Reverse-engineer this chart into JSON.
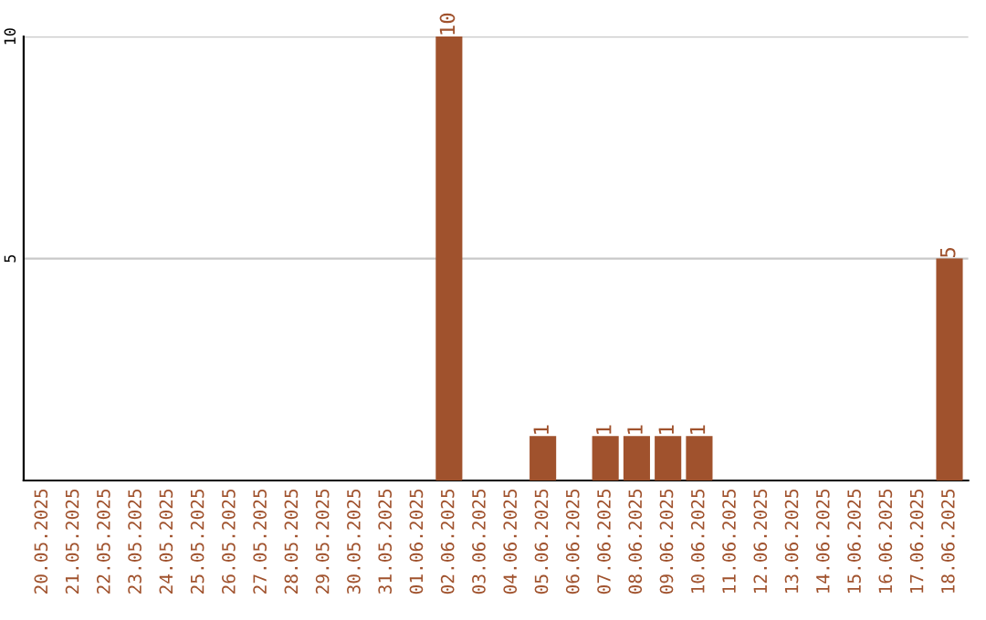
{
  "chart_data": {
    "type": "bar",
    "categories": [
      "20.05.2025",
      "21.05.2025",
      "22.05.2025",
      "23.05.2025",
      "24.05.2025",
      "25.05.2025",
      "26.05.2025",
      "27.05.2025",
      "28.05.2025",
      "29.05.2025",
      "30.05.2025",
      "31.05.2025",
      "01.06.2025",
      "02.06.2025",
      "03.06.2025",
      "04.06.2025",
      "05.06.2025",
      "06.06.2025",
      "07.06.2025",
      "08.06.2025",
      "09.06.2025",
      "10.06.2025",
      "11.06.2025",
      "12.06.2025",
      "13.06.2025",
      "14.06.2025",
      "15.06.2025",
      "16.06.2025",
      "17.06.2025",
      "18.06.2025"
    ],
    "values": [
      0,
      0,
      0,
      0,
      0,
      0,
      0,
      0,
      0,
      0,
      0,
      0,
      0,
      10,
      0,
      0,
      1,
      0,
      1,
      1,
      1,
      1,
      0,
      0,
      0,
      0,
      0,
      0,
      0,
      5
    ],
    "value_labels": [
      null,
      null,
      null,
      null,
      null,
      null,
      null,
      null,
      null,
      null,
      null,
      null,
      null,
      "10",
      null,
      null,
      "1",
      null,
      "1",
      "1",
      "1",
      "1",
      null,
      null,
      null,
      null,
      null,
      null,
      null,
      "5"
    ],
    "color": "#a0522d",
    "ylim": [
      0,
      10
    ],
    "yticks": [
      5,
      10
    ],
    "grid": "y"
  }
}
